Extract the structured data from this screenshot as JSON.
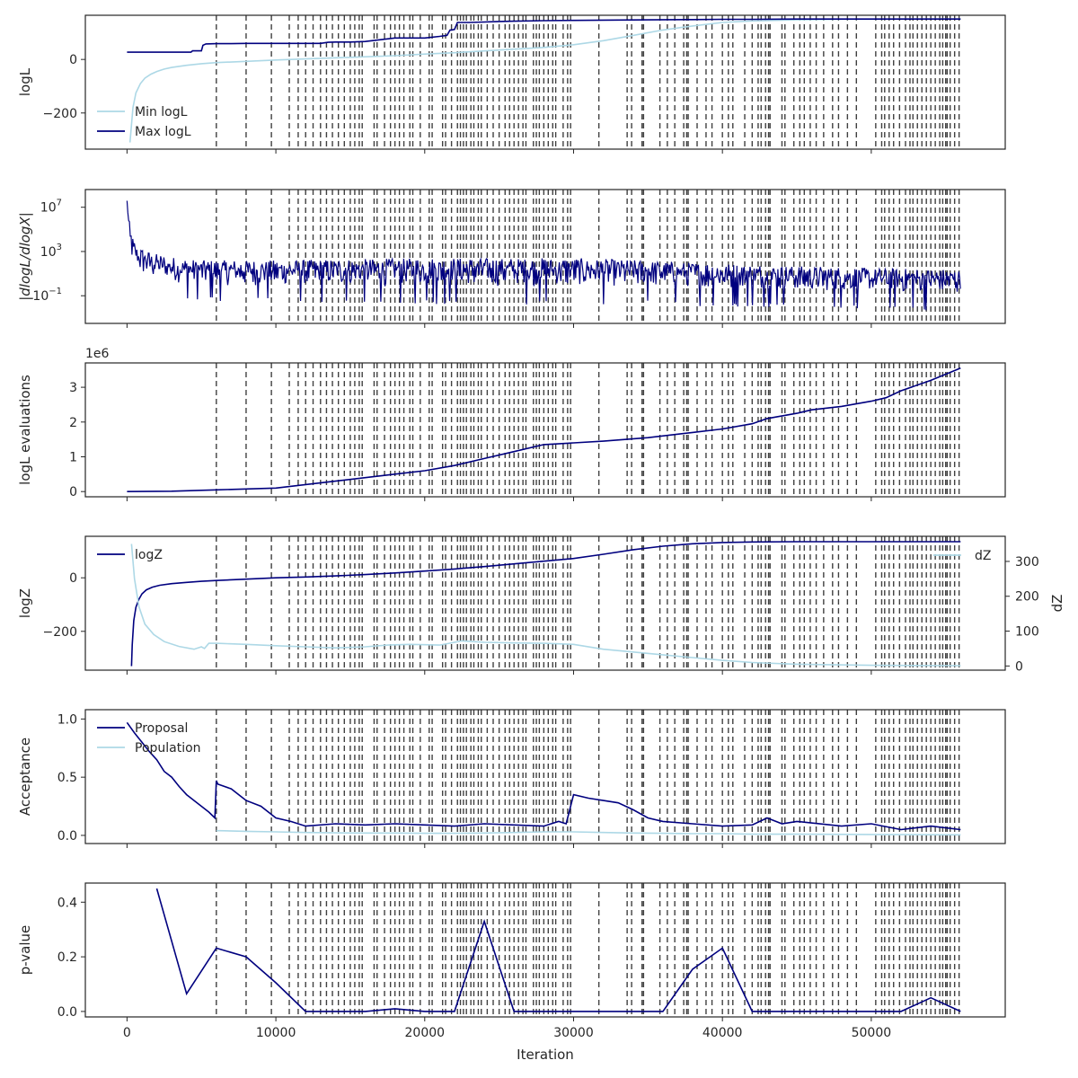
{
  "figure": {
    "xlabel": "Iteration"
  },
  "colors": {
    "dark": "#00007f",
    "light": "#add8e6",
    "vline": "#404040",
    "frame": "#262626"
  },
  "shared_x": {
    "xlim": [
      -2800,
      59000
    ],
    "xticks": [
      0,
      10000,
      20000,
      30000,
      40000,
      50000
    ],
    "xtick_labels": [
      "0",
      "10000",
      "20000",
      "30000",
      "40000",
      "50000"
    ]
  },
  "vlines": [
    6000,
    8000,
    9700,
    10900,
    11500,
    12000,
    12500,
    13000,
    13400,
    13800,
    14200,
    14600,
    15000,
    15300,
    15600,
    15800,
    16600,
    16800,
    17300,
    17700,
    18000,
    18300,
    18600,
    19000,
    19200,
    19700,
    20300,
    20500,
    21200,
    21400,
    21800,
    22200,
    22400,
    22600,
    22800,
    23100,
    23300,
    23600,
    23800,
    24200,
    24600,
    25000,
    25400,
    25700,
    26000,
    26300,
    26600,
    26800,
    27300,
    27500,
    27700,
    28000,
    28300,
    28600,
    28800,
    29300,
    29600,
    29800,
    31700,
    33600,
    33900,
    34600,
    34700,
    35800,
    36300,
    36800,
    37400,
    37600,
    37700,
    38300,
    38900,
    39300,
    40000,
    40400,
    40700,
    41500,
    42000,
    42400,
    42600,
    42900,
    43100,
    43200,
    44000,
    44200,
    44800,
    45200,
    45500,
    45900,
    46300,
    46800,
    47400,
    47800,
    48400,
    49000,
    50300,
    50700,
    50900,
    51200,
    51500,
    51900,
    52300,
    52600,
    52800,
    53100,
    53400,
    53700,
    54000,
    54300,
    54600,
    54800,
    55000,
    55100,
    55300,
    55600,
    55900
  ],
  "chart_data": [
    {
      "type": "line",
      "ylabel": "logL",
      "ylim": [
        -335,
        165
      ],
      "yticks": [
        0,
        -200
      ],
      "ytick_labels": [
        "0",
        "−200"
      ],
      "legend": "lower-left",
      "series": [
        {
          "name": "Min logL",
          "color": "light",
          "x": [
            200,
            400,
            600,
            900,
            1200,
            1600,
            2000,
            2500,
            3000,
            4000,
            5000,
            6000,
            8000,
            10000,
            12000,
            15000,
            18000,
            20000,
            22000,
            25000,
            28000,
            30000,
            32000,
            34000,
            36000,
            38000,
            40000,
            42000,
            45000,
            48000,
            50000,
            52000,
            55000,
            56000
          ],
          "y": [
            -310,
            -180,
            -125,
            -90,
            -70,
            -55,
            -45,
            -36,
            -30,
            -22,
            -16,
            -12,
            -7,
            -2,
            2,
            8,
            14,
            20,
            25,
            35,
            45,
            55,
            70,
            90,
            110,
            125,
            138,
            144,
            148,
            150,
            150,
            151,
            151,
            151
          ]
        },
        {
          "name": "Max logL",
          "color": "dark",
          "x": [
            0,
            4300,
            4400,
            5000,
            5100,
            5300,
            6000,
            7000,
            8000,
            9000,
            10000,
            11000,
            13000,
            13500,
            14000,
            15000,
            16000,
            18000,
            19000,
            20000,
            21000,
            21500,
            21700,
            21800,
            22000,
            22200,
            23000,
            24000,
            25000,
            26000,
            28000,
            30000,
            32000,
            35000,
            38000,
            40000,
            42000,
            45000,
            50000,
            56000
          ],
          "y": [
            27,
            27,
            32,
            32,
            53,
            58,
            59,
            59,
            60,
            60,
            60,
            60,
            60,
            64,
            65,
            65,
            67,
            80,
            80,
            80,
            86,
            90,
            110,
            110,
            112,
            138,
            138,
            140,
            142,
            143,
            145,
            146,
            147,
            148,
            149,
            150,
            150,
            151,
            151,
            151
          ]
        }
      ]
    },
    {
      "type": "line",
      "ylabel": "|dlogL/dlogX|",
      "yscale": "log",
      "ylim": [
        -3.5,
        8.6
      ],
      "yticks": [
        7,
        3,
        -1
      ],
      "ytick_labels": [
        "10",
        "10",
        "10"
      ],
      "ytick_exps": [
        "7",
        "3",
        "−1"
      ],
      "series": [
        {
          "name": "",
          "color": "dark",
          "noise": true,
          "x": [
            0,
            200,
            400,
            600,
            1000,
            1500,
            2000,
            3000,
            4000,
            5000,
            6000,
            10000,
            15000,
            20000,
            25000,
            30000,
            35000,
            40000,
            45000,
            50000,
            55000,
            56000
          ],
          "upper": [
            8,
            5.2,
            4.2,
            3.7,
            3.3,
            3.0,
            2.8,
            2.5,
            2.3,
            2.2,
            2.2,
            2.2,
            2.3,
            2.4,
            2.4,
            2.4,
            2.2,
            1.9,
            1.7,
            1.5,
            1.4,
            1.4
          ],
          "lower": [
            6,
            1.5,
            0.5,
            -0.2,
            -0.5,
            -0.8,
            -1.0,
            -1.2,
            -1.3,
            -1.4,
            -1.5,
            -1.6,
            -1.7,
            -1.8,
            -1.8,
            -1.8,
            -1.8,
            -2.0,
            -2.1,
            -2.2,
            -2.4,
            -2.4
          ]
        }
      ]
    },
    {
      "type": "line",
      "ylabel": "logL evaluations",
      "scale_label": "1e6",
      "ylim": [
        -0.15,
        3.7
      ],
      "yticks": [
        0,
        1,
        2,
        3
      ],
      "ytick_labels": [
        "0",
        "1",
        "2",
        "3"
      ],
      "series": [
        {
          "name": "",
          "color": "dark",
          "x": [
            0,
            3000,
            6000,
            10000,
            14000,
            18000,
            20000,
            22000,
            24000,
            26000,
            28000,
            30000,
            32000,
            35000,
            38000,
            40000,
            42000,
            43000,
            45000,
            46000,
            48000,
            50000,
            51000,
            52000,
            54000,
            56000
          ],
          "y": [
            0,
            0.01,
            0.05,
            0.1,
            0.3,
            0.5,
            0.6,
            0.75,
            0.95,
            1.15,
            1.35,
            1.4,
            1.45,
            1.55,
            1.7,
            1.8,
            1.95,
            2.1,
            2.25,
            2.35,
            2.45,
            2.6,
            2.7,
            2.9,
            3.2,
            3.55
          ]
        }
      ]
    },
    {
      "type": "line",
      "ylabel": "logZ",
      "ylim": [
        -345,
        155
      ],
      "yticks": [
        0,
        -200
      ],
      "ytick_labels": [
        "0",
        "−200"
      ],
      "legend": "upper-left",
      "series": [
        {
          "name": "logZ",
          "color": "dark",
          "x": [
            300,
            350,
            450,
            600,
            800,
            1000,
            1300,
            1700,
            2200,
            3000,
            4000,
            5000,
            6000,
            8000,
            10000,
            12000,
            14000,
            16000,
            18000,
            20000,
            22000,
            24000,
            26000,
            28000,
            30000,
            32000,
            34000,
            36000,
            38000,
            40000,
            42000,
            45000,
            50000,
            56000
          ],
          "y": [
            -330,
            -250,
            -160,
            -110,
            -80,
            -60,
            -45,
            -35,
            -28,
            -22,
            -17,
            -13,
            -10,
            -5,
            0,
            3,
            7,
            12,
            18,
            25,
            33,
            42,
            52,
            62,
            72,
            88,
            105,
            118,
            127,
            132,
            134,
            135,
            135,
            135
          ]
        }
      ],
      "secondary": {
        "ylabel": "dZ",
        "ylim": [
          -12,
          372
        ],
        "yticks": [
          0,
          100,
          200,
          300
        ],
        "ytick_labels": [
          "0",
          "100",
          "200",
          "300"
        ],
        "legend": "upper-right",
        "series": [
          {
            "name": "dZ",
            "color": "light",
            "x": [
              300,
              500,
              800,
              1200,
              1800,
              2500,
              3500,
              4500,
              5000,
              5200,
              5500,
              6000,
              8000,
              10000,
              12000,
              14000,
              16000,
              17500,
              19000,
              21000,
              22500,
              24000,
              26000,
              28000,
              30000,
              32000,
              34000,
              36000,
              38000,
              40000,
              42000,
              45000,
              50000,
              56000
            ],
            "y": [
              350,
              250,
              170,
              120,
              90,
              70,
              56,
              48,
              55,
              50,
              65,
              65,
              62,
              58,
              55,
              52,
              55,
              60,
              62,
              60,
              72,
              68,
              66,
              65,
              62,
              48,
              40,
              32,
              24,
              16,
              10,
              5,
              2,
              1
            ]
          }
        ]
      }
    },
    {
      "type": "line",
      "ylabel": "Acceptance",
      "ylim": [
        -0.07,
        1.08
      ],
      "yticks": [
        0,
        0.5,
        1
      ],
      "ytick_labels": [
        "0.0",
        "0.5",
        "1.0"
      ],
      "legend": "upper-left",
      "series": [
        {
          "name": "Proposal",
          "color": "dark",
          "x": [
            0,
            500,
            1000,
            1500,
            2000,
            2500,
            3000,
            3500,
            4000,
            4500,
            5000,
            5500,
            5900,
            6000,
            6100,
            7000,
            8000,
            9000,
            10000,
            11000,
            12000,
            14000,
            16000,
            18000,
            20000,
            22000,
            24000,
            26000,
            28000,
            29000,
            29500,
            30000,
            31000,
            32000,
            33000,
            34000,
            35000,
            36000,
            38000,
            40000,
            42000,
            43000,
            44000,
            45000,
            48000,
            50000,
            52000,
            54000,
            56000
          ],
          "y": [
            0.97,
            0.88,
            0.8,
            0.72,
            0.65,
            0.55,
            0.5,
            0.42,
            0.35,
            0.3,
            0.25,
            0.2,
            0.15,
            0.47,
            0.44,
            0.4,
            0.3,
            0.25,
            0.15,
            0.12,
            0.08,
            0.1,
            0.09,
            0.1,
            0.09,
            0.08,
            0.1,
            0.09,
            0.08,
            0.12,
            0.1,
            0.35,
            0.32,
            0.3,
            0.28,
            0.22,
            0.15,
            0.12,
            0.1,
            0.08,
            0.09,
            0.15,
            0.1,
            0.12,
            0.08,
            0.1,
            0.05,
            0.08,
            0.05
          ]
        },
        {
          "name": "Population",
          "color": "light",
          "x": [
            6000,
            6200,
            8000,
            10000,
            12000,
            14000,
            16000,
            18000,
            20000,
            22000,
            24000,
            26000,
            28000,
            30000,
            32000,
            34000,
            36000,
            38000,
            40000,
            42000,
            45000,
            50000,
            56000
          ],
          "y": [
            0.04,
            0.04,
            0.035,
            0.03,
            0.025,
            0.022,
            0.02,
            0.02,
            0.018,
            0.018,
            0.02,
            0.025,
            0.03,
            0.03,
            0.025,
            0.02,
            0.018,
            0.015,
            0.015,
            0.01,
            0.01,
            0.008,
            0.005
          ]
        }
      ]
    },
    {
      "type": "line",
      "ylabel": "p-value",
      "ylim": [
        -0.02,
        0.47
      ],
      "yticks": [
        0,
        0.2,
        0.4
      ],
      "ytick_labels": [
        "0.0",
        "0.2",
        "0.4"
      ],
      "series": [
        {
          "name": "",
          "color": "dark",
          "x": [
            2000,
            4000,
            6000,
            8000,
            10000,
            12000,
            16000,
            18000,
            20000,
            22000,
            24000,
            26000,
            28000,
            30000,
            34000,
            36000,
            38000,
            40000,
            42000,
            46000,
            50000,
            52000,
            54000,
            56000
          ],
          "y": [
            0.45,
            0.065,
            0.232,
            0.2,
            0.105,
            0.0,
            0.0,
            0.01,
            0.0,
            0.0,
            0.33,
            0.0,
            0.0,
            0.0,
            0.0,
            0.0,
            0.155,
            0.232,
            0.0,
            0.0,
            0.0,
            0.0,
            0.05,
            0.0
          ]
        }
      ]
    }
  ]
}
